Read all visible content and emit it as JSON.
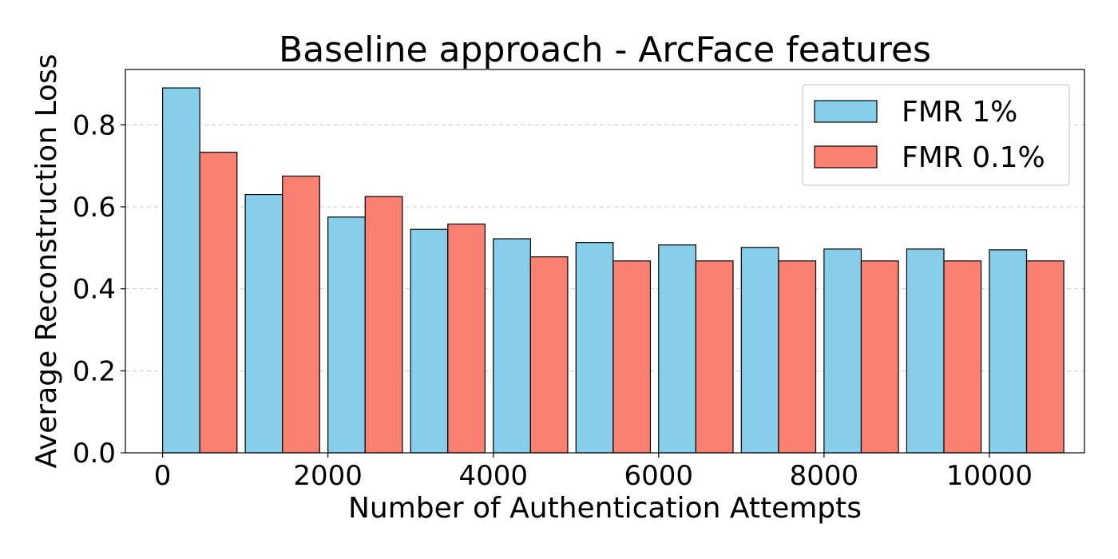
{
  "chart_data": {
    "type": "bar",
    "title": "Baseline approach - ArcFace features",
    "xlabel": "Number of Authentication Attempts",
    "ylabel": "Average Reconstruction Loss",
    "x": [
      0,
      1000,
      2000,
      3000,
      4000,
      5000,
      6000,
      7000,
      8000,
      9000,
      10000
    ],
    "bar_width": 450,
    "series": [
      {
        "name": "FMR 1%",
        "color": "#87ceeb",
        "values": [
          0.89,
          0.63,
          0.575,
          0.545,
          0.522,
          0.513,
          0.507,
          0.501,
          0.497,
          0.497,
          0.495
        ]
      },
      {
        "name": "FMR 0.1%",
        "color": "#fa8072",
        "values": [
          0.733,
          0.675,
          0.625,
          0.558,
          0.478,
          0.468,
          0.468,
          0.468,
          0.468,
          0.468,
          0.468
        ]
      }
    ],
    "xlim": [
      -450,
      11150
    ],
    "ylim": [
      0,
      0.935
    ],
    "xticks": [
      0,
      2000,
      4000,
      6000,
      8000,
      10000
    ],
    "xtick_labels": [
      "0",
      "2000",
      "4000",
      "6000",
      "8000",
      "10000"
    ],
    "yticks": [
      0.0,
      0.2,
      0.4,
      0.6,
      0.8
    ],
    "ytick_labels": [
      "0.0",
      "0.2",
      "0.4",
      "0.6",
      "0.8"
    ],
    "grid": "y-dashed",
    "legend_position": "top-right"
  }
}
